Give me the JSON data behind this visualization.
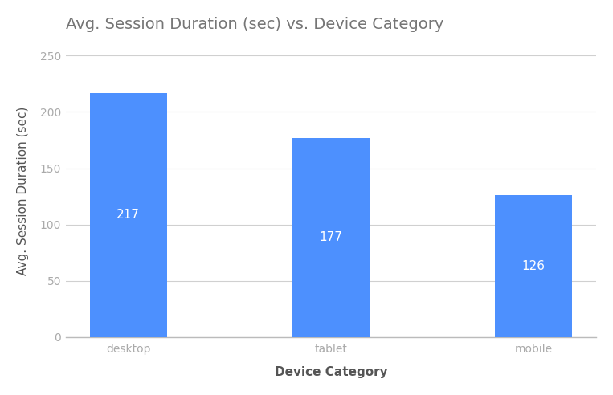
{
  "title": "Avg. Session Duration (sec) vs. Device Category",
  "xlabel": "Device Category",
  "ylabel": "Avg. Session Duration (sec)",
  "categories": [
    "desktop",
    "tablet",
    "mobile"
  ],
  "values": [
    217,
    177,
    126
  ],
  "bar_color": "#4d90fe",
  "label_color": "#ffffff",
  "label_fontsize": 11,
  "title_fontsize": 14,
  "axis_label_fontsize": 11,
  "tick_fontsize": 10,
  "ylim": [
    0,
    260
  ],
  "yticks": [
    0,
    50,
    100,
    150,
    200,
    250
  ],
  "background_color": "#ffffff",
  "grid_color": "#d0d0d0",
  "tick_color": "#aaaaaa",
  "title_color": "#757575",
  "axis_label_color": "#555555",
  "bar_width": 0.38
}
